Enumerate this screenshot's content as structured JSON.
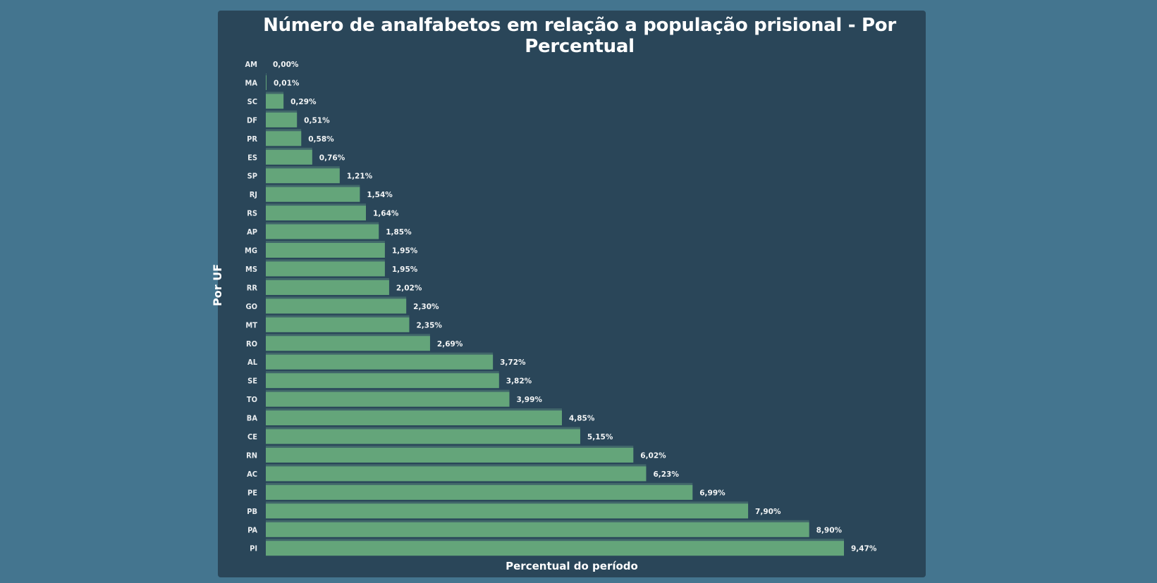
{
  "colors": {
    "page_background": "#44758f",
    "panel_background": "#2a4659",
    "bar": "#64a57a",
    "bar_shadow": "#41676a",
    "text": "#ffffff"
  },
  "chart_data": {
    "type": "bar",
    "orientation": "horizontal",
    "title": "Número de analfabetos em relação a população prisional - Por Percentual",
    "xlabel": "Percentual do período",
    "ylabel": "Por UF",
    "categories": [
      "AM",
      "MA",
      "SC",
      "DF",
      "PR",
      "ES",
      "SP",
      "RJ",
      "RS",
      "AP",
      "MG",
      "MS",
      "RR",
      "GO",
      "MT",
      "RO",
      "AL",
      "SE",
      "TO",
      "BA",
      "CE",
      "RN",
      "AC",
      "PE",
      "PB",
      "PA",
      "PI"
    ],
    "values": [
      0.0,
      0.01,
      0.29,
      0.51,
      0.58,
      0.76,
      1.21,
      1.54,
      1.64,
      1.85,
      1.95,
      1.95,
      2.02,
      2.3,
      2.35,
      2.69,
      3.72,
      3.82,
      3.99,
      4.85,
      5.15,
      6.02,
      6.23,
      6.99,
      7.9,
      8.9,
      9.47
    ],
    "value_labels": [
      "0,00%",
      "0,01%",
      "0,29%",
      "0,51%",
      "0,58%",
      "0,76%",
      "1,21%",
      "1,54%",
      "1,64%",
      "1,85%",
      "1,95%",
      "1,95%",
      "2,02%",
      "2,30%",
      "2,35%",
      "2,69%",
      "3,72%",
      "3,82%",
      "3,99%",
      "4,85%",
      "5,15%",
      "6,02%",
      "6,23%",
      "6,99%",
      "7,90%",
      "8,90%",
      "9,47%"
    ],
    "unit": "%",
    "xlim": [
      0,
      9.47
    ],
    "grid": false,
    "legend": "none"
  }
}
